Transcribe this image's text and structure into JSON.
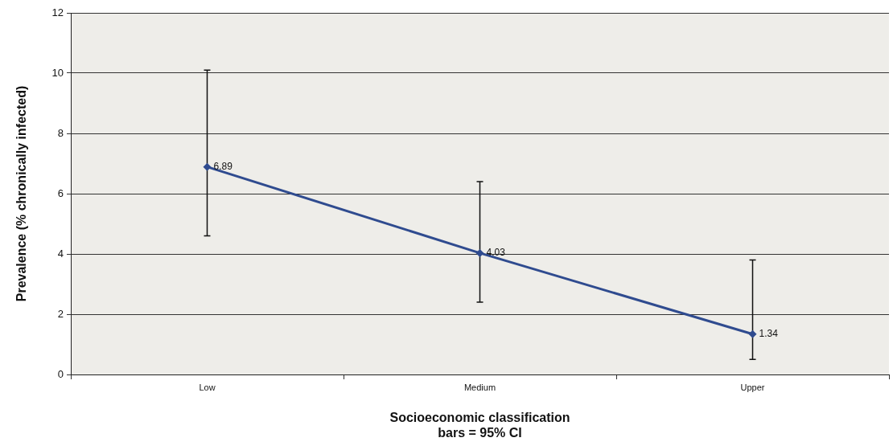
{
  "chart_data": {
    "type": "line",
    "xlabel": "Socioeconomic classification",
    "annotations": [
      "bars = 95% CI"
    ],
    "ylabel": "Prevalence (% chronically infected)",
    "categories": [
      "Low",
      "Medium",
      "Upper"
    ],
    "series": [
      {
        "color": "#2f4b8f",
        "values": [
          6.89,
          4.03,
          1.34
        ],
        "errors": [
          [
            4.6,
            10.1
          ],
          [
            2.4,
            6.4
          ],
          [
            0.5,
            3.8
          ]
        ]
      }
    ],
    "ylim": [
      0,
      12
    ],
    "yticks": [
      0,
      2,
      4,
      6,
      8,
      10,
      12
    ],
    "grid": "y",
    "legend": false,
    "marker": "diamond",
    "line_style": "solid",
    "data_labels": true
  }
}
